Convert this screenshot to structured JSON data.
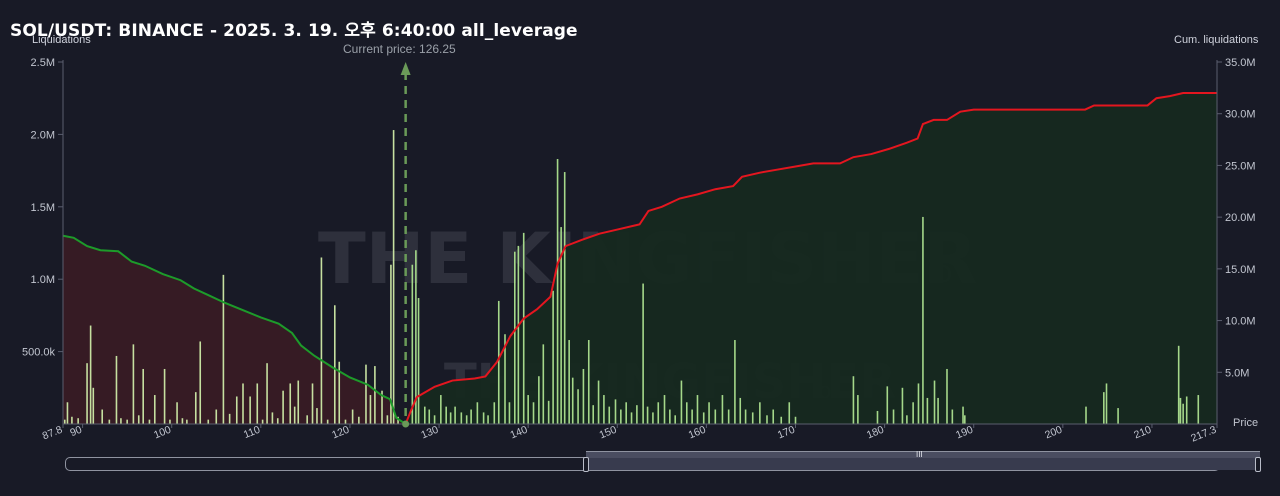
{
  "header": {
    "title": "SOL/USDT: BINANCE - 2025. 3. 19. 오후 6:40:00 all_leverage",
    "left_axis_title": "Liquidations",
    "right_axis_title": "Cum. liquidations",
    "current_price_label": "Current price: 126.25",
    "price_axis_label": "Price"
  },
  "watermark": {
    "brand": "THE KINGFISHER",
    "suffix": "io"
  },
  "colors": {
    "background": "#181a26",
    "bar": "#c6e0a0",
    "bar_right": "#a5d88a",
    "cum_short": "#e4161f",
    "cum_long": "#1d9b2a",
    "fill_left": "#3a1c25",
    "fill_right": "#16291f",
    "current_price_line": "#6a9a58"
  },
  "chart_data": {
    "type": "bar",
    "x_label": "Price",
    "x_range": [
      87.8,
      217.3
    ],
    "x_ticks": [
      "87.8",
      "90",
      "100",
      "110",
      "120",
      "130",
      "140",
      "150",
      "160",
      "170",
      "180",
      "190",
      "200",
      "210",
      "217.3"
    ],
    "y_left_label": "Liquidations",
    "y_left_range": [
      0,
      2500000
    ],
    "y_left_ticks": [
      "2.5M",
      "2.0M",
      "1.5M",
      "1.0M",
      "500.0k"
    ],
    "y_right_label": "Cum. liquidations",
    "y_right_range": [
      0,
      35000000
    ],
    "y_right_ticks": [
      "35.0M",
      "30.0M",
      "25.0M",
      "20.0M",
      "15.0M",
      "10.0M",
      "5.0M"
    ],
    "current_price": 126.25,
    "liquidation_bars": [
      {
        "price": 88.0,
        "value": 30000
      },
      {
        "price": 88.3,
        "value": 150000
      },
      {
        "price": 88.8,
        "value": 50000
      },
      {
        "price": 89.5,
        "value": 40000
      },
      {
        "price": 90.5,
        "value": 420000
      },
      {
        "price": 90.9,
        "value": 680000
      },
      {
        "price": 91.2,
        "value": 250000
      },
      {
        "price": 92.2,
        "value": 100000
      },
      {
        "price": 93.0,
        "value": 30000
      },
      {
        "price": 93.8,
        "value": 470000
      },
      {
        "price": 94.3,
        "value": 40000
      },
      {
        "price": 95.0,
        "value": 30000
      },
      {
        "price": 95.7,
        "value": 550000
      },
      {
        "price": 96.3,
        "value": 60000
      },
      {
        "price": 96.8,
        "value": 380000
      },
      {
        "price": 97.5,
        "value": 30000
      },
      {
        "price": 98.1,
        "value": 200000
      },
      {
        "price": 99.2,
        "value": 380000
      },
      {
        "price": 99.8,
        "value": 30000
      },
      {
        "price": 100.6,
        "value": 150000
      },
      {
        "price": 101.2,
        "value": 40000
      },
      {
        "price": 101.7,
        "value": 30000
      },
      {
        "price": 102.7,
        "value": 220000
      },
      {
        "price": 103.2,
        "value": 570000
      },
      {
        "price": 104.1,
        "value": 30000
      },
      {
        "price": 105.0,
        "value": 100000
      },
      {
        "price": 105.8,
        "value": 1030000
      },
      {
        "price": 106.5,
        "value": 70000
      },
      {
        "price": 107.3,
        "value": 190000
      },
      {
        "price": 108.0,
        "value": 280000
      },
      {
        "price": 108.8,
        "value": 190000
      },
      {
        "price": 109.6,
        "value": 280000
      },
      {
        "price": 110.2,
        "value": 30000
      },
      {
        "price": 110.7,
        "value": 420000
      },
      {
        "price": 111.3,
        "value": 80000
      },
      {
        "price": 111.9,
        "value": 40000
      },
      {
        "price": 112.5,
        "value": 230000
      },
      {
        "price": 113.3,
        "value": 280000
      },
      {
        "price": 113.8,
        "value": 120000
      },
      {
        "price": 114.2,
        "value": 300000
      },
      {
        "price": 115.2,
        "value": 60000
      },
      {
        "price": 115.8,
        "value": 280000
      },
      {
        "price": 116.3,
        "value": 110000
      },
      {
        "price": 116.8,
        "value": 1150000
      },
      {
        "price": 117.5,
        "value": 30000
      },
      {
        "price": 118.3,
        "value": 820000
      },
      {
        "price": 118.8,
        "value": 430000
      },
      {
        "price": 119.5,
        "value": 30000
      },
      {
        "price": 120.3,
        "value": 100000
      },
      {
        "price": 121.0,
        "value": 50000
      },
      {
        "price": 121.8,
        "value": 410000
      },
      {
        "price": 122.3,
        "value": 200000
      },
      {
        "price": 122.8,
        "value": 400000
      },
      {
        "price": 123.6,
        "value": 230000
      },
      {
        "price": 124.2,
        "value": 60000
      },
      {
        "price": 124.6,
        "value": 1100000
      },
      {
        "price": 124.9,
        "value": 2030000
      },
      {
        "price": 125.4,
        "value": 50000
      },
      {
        "price": 127.0,
        "value": 1100000
      },
      {
        "price": 127.4,
        "value": 1200000
      },
      {
        "price": 127.7,
        "value": 870000
      },
      {
        "price": 128.4,
        "value": 120000
      },
      {
        "price": 128.9,
        "value": 100000
      },
      {
        "price": 129.5,
        "value": 60000
      },
      {
        "price": 130.2,
        "value": 200000
      },
      {
        "price": 130.8,
        "value": 120000
      },
      {
        "price": 131.3,
        "value": 80000
      },
      {
        "price": 131.8,
        "value": 120000
      },
      {
        "price": 132.5,
        "value": 80000
      },
      {
        "price": 133.1,
        "value": 60000
      },
      {
        "price": 133.6,
        "value": 100000
      },
      {
        "price": 134.3,
        "value": 150000
      },
      {
        "price": 135.0,
        "value": 80000
      },
      {
        "price": 135.5,
        "value": 60000
      },
      {
        "price": 136.2,
        "value": 150000
      },
      {
        "price": 136.7,
        "value": 850000
      },
      {
        "price": 137.4,
        "value": 620000
      },
      {
        "price": 137.9,
        "value": 150000
      },
      {
        "price": 138.5,
        "value": 1190000
      },
      {
        "price": 138.9,
        "value": 1230000
      },
      {
        "price": 139.5,
        "value": 1320000
      },
      {
        "price": 140.0,
        "value": 200000
      },
      {
        "price": 140.6,
        "value": 150000
      },
      {
        "price": 141.2,
        "value": 330000
      },
      {
        "price": 141.7,
        "value": 550000
      },
      {
        "price": 142.3,
        "value": 160000
      },
      {
        "price": 142.8,
        "value": 920000
      },
      {
        "price": 143.3,
        "value": 1830000
      },
      {
        "price": 143.7,
        "value": 1360000
      },
      {
        "price": 144.1,
        "value": 1740000
      },
      {
        "price": 144.6,
        "value": 580000
      },
      {
        "price": 145.0,
        "value": 320000
      },
      {
        "price": 145.6,
        "value": 240000
      },
      {
        "price": 146.2,
        "value": 380000
      },
      {
        "price": 146.8,
        "value": 580000
      },
      {
        "price": 147.3,
        "value": 130000
      },
      {
        "price": 147.9,
        "value": 300000
      },
      {
        "price": 148.5,
        "value": 200000
      },
      {
        "price": 149.1,
        "value": 120000
      },
      {
        "price": 149.8,
        "value": 170000
      },
      {
        "price": 150.4,
        "value": 100000
      },
      {
        "price": 151.0,
        "value": 150000
      },
      {
        "price": 151.6,
        "value": 80000
      },
      {
        "price": 152.2,
        "value": 130000
      },
      {
        "price": 152.9,
        "value": 970000
      },
      {
        "price": 153.4,
        "value": 120000
      },
      {
        "price": 154.0,
        "value": 80000
      },
      {
        "price": 154.6,
        "value": 150000
      },
      {
        "price": 155.3,
        "value": 200000
      },
      {
        "price": 155.9,
        "value": 100000
      },
      {
        "price": 156.5,
        "value": 60000
      },
      {
        "price": 157.2,
        "value": 300000
      },
      {
        "price": 157.8,
        "value": 150000
      },
      {
        "price": 158.4,
        "value": 100000
      },
      {
        "price": 159.0,
        "value": 200000
      },
      {
        "price": 159.7,
        "value": 80000
      },
      {
        "price": 160.3,
        "value": 150000
      },
      {
        "price": 161.0,
        "value": 100000
      },
      {
        "price": 161.8,
        "value": 200000
      },
      {
        "price": 162.5,
        "value": 100000
      },
      {
        "price": 163.2,
        "value": 580000
      },
      {
        "price": 163.8,
        "value": 180000
      },
      {
        "price": 164.4,
        "value": 100000
      },
      {
        "price": 165.2,
        "value": 80000
      },
      {
        "price": 166.0,
        "value": 150000
      },
      {
        "price": 166.8,
        "value": 60000
      },
      {
        "price": 167.5,
        "value": 100000
      },
      {
        "price": 168.4,
        "value": 50000
      },
      {
        "price": 169.3,
        "value": 150000
      },
      {
        "price": 170.0,
        "value": 50000
      },
      {
        "price": 176.5,
        "value": 330000
      },
      {
        "price": 177.0,
        "value": 200000
      },
      {
        "price": 179.2,
        "value": 90000
      },
      {
        "price": 180.3,
        "value": 260000
      },
      {
        "price": 181.0,
        "value": 100000
      },
      {
        "price": 182.0,
        "value": 250000
      },
      {
        "price": 182.5,
        "value": 60000
      },
      {
        "price": 183.2,
        "value": 150000
      },
      {
        "price": 183.8,
        "value": 280000
      },
      {
        "price": 184.3,
        "value": 1430000
      },
      {
        "price": 184.8,
        "value": 180000
      },
      {
        "price": 185.6,
        "value": 300000
      },
      {
        "price": 186.0,
        "value": 180000
      },
      {
        "price": 187.0,
        "value": 380000
      },
      {
        "price": 187.6,
        "value": 100000
      },
      {
        "price": 188.8,
        "value": 120000
      },
      {
        "price": 189.0,
        "value": 60000
      },
      {
        "price": 202.6,
        "value": 120000
      },
      {
        "price": 204.6,
        "value": 220000
      },
      {
        "price": 204.9,
        "value": 280000
      },
      {
        "price": 206.2,
        "value": 110000
      },
      {
        "price": 213.2,
        "value": 180000
      },
      {
        "price": 213.5,
        "value": 140000
      },
      {
        "price": 213.9,
        "value": 190000
      },
      {
        "price": 215.2,
        "value": 200000
      },
      {
        "price": 213.0,
        "value": 540000
      }
    ],
    "cum_long_below_price": [
      {
        "price": 87.8,
        "value": 18200000
      },
      {
        "price": 89.0,
        "value": 18000000
      },
      {
        "price": 90.5,
        "value": 17200000
      },
      {
        "price": 92.0,
        "value": 16800000
      },
      {
        "price": 94.0,
        "value": 16700000
      },
      {
        "price": 95.5,
        "value": 15700000
      },
      {
        "price": 97.0,
        "value": 15300000
      },
      {
        "price": 99.0,
        "value": 14500000
      },
      {
        "price": 101.0,
        "value": 13900000
      },
      {
        "price": 102.5,
        "value": 13100000
      },
      {
        "price": 104.0,
        "value": 12500000
      },
      {
        "price": 106.0,
        "value": 11700000
      },
      {
        "price": 108.0,
        "value": 11000000
      },
      {
        "price": 110.0,
        "value": 10300000
      },
      {
        "price": 112.0,
        "value": 9700000
      },
      {
        "price": 113.5,
        "value": 8800000
      },
      {
        "price": 114.5,
        "value": 7600000
      },
      {
        "price": 116.0,
        "value": 6600000
      },
      {
        "price": 118.0,
        "value": 5500000
      },
      {
        "price": 120.0,
        "value": 4500000
      },
      {
        "price": 122.0,
        "value": 3800000
      },
      {
        "price": 123.5,
        "value": 2800000
      },
      {
        "price": 124.5,
        "value": 2400000
      },
      {
        "price": 125.2,
        "value": 600000
      },
      {
        "price": 126.25,
        "value": 0
      }
    ],
    "cum_short_above_price": [
      {
        "price": 126.25,
        "value": 0
      },
      {
        "price": 126.8,
        "value": 1200000
      },
      {
        "price": 127.5,
        "value": 2600000
      },
      {
        "price": 129.5,
        "value": 3600000
      },
      {
        "price": 131.5,
        "value": 4200000
      },
      {
        "price": 134.0,
        "value": 4400000
      },
      {
        "price": 135.2,
        "value": 4600000
      },
      {
        "price": 136.5,
        "value": 6000000
      },
      {
        "price": 138.0,
        "value": 8500000
      },
      {
        "price": 139.5,
        "value": 10200000
      },
      {
        "price": 141.0,
        "value": 11100000
      },
      {
        "price": 142.5,
        "value": 12300000
      },
      {
        "price": 143.3,
        "value": 15500000
      },
      {
        "price": 144.2,
        "value": 17200000
      },
      {
        "price": 146.0,
        "value": 17800000
      },
      {
        "price": 148.0,
        "value": 18400000
      },
      {
        "price": 150.0,
        "value": 18800000
      },
      {
        "price": 152.5,
        "value": 19300000
      },
      {
        "price": 153.5,
        "value": 20600000
      },
      {
        "price": 155.0,
        "value": 21000000
      },
      {
        "price": 157.0,
        "value": 21800000
      },
      {
        "price": 159.0,
        "value": 22200000
      },
      {
        "price": 161.0,
        "value": 22700000
      },
      {
        "price": 163.0,
        "value": 23000000
      },
      {
        "price": 164.0,
        "value": 23900000
      },
      {
        "price": 166.0,
        "value": 24300000
      },
      {
        "price": 168.0,
        "value": 24600000
      },
      {
        "price": 170.0,
        "value": 24900000
      },
      {
        "price": 172.0,
        "value": 25200000
      },
      {
        "price": 175.0,
        "value": 25200000
      },
      {
        "price": 176.5,
        "value": 25800000
      },
      {
        "price": 178.5,
        "value": 26100000
      },
      {
        "price": 180.5,
        "value": 26600000
      },
      {
        "price": 182.5,
        "value": 27200000
      },
      {
        "price": 183.7,
        "value": 27600000
      },
      {
        "price": 184.3,
        "value": 29000000
      },
      {
        "price": 185.5,
        "value": 29400000
      },
      {
        "price": 187.0,
        "value": 29400000
      },
      {
        "price": 188.5,
        "value": 30200000
      },
      {
        "price": 190.0,
        "value": 30400000
      },
      {
        "price": 195.0,
        "value": 30400000
      },
      {
        "price": 200.0,
        "value": 30400000
      },
      {
        "price": 202.5,
        "value": 30400000
      },
      {
        "price": 203.5,
        "value": 30800000
      },
      {
        "price": 206.0,
        "value": 30800000
      },
      {
        "price": 209.5,
        "value": 30800000
      },
      {
        "price": 210.5,
        "value": 31500000
      },
      {
        "price": 212.0,
        "value": 31700000
      },
      {
        "price": 213.5,
        "value": 32000000
      },
      {
        "price": 217.3,
        "value": 32000000
      }
    ]
  },
  "scrollbar": {
    "grip_label": "III"
  }
}
